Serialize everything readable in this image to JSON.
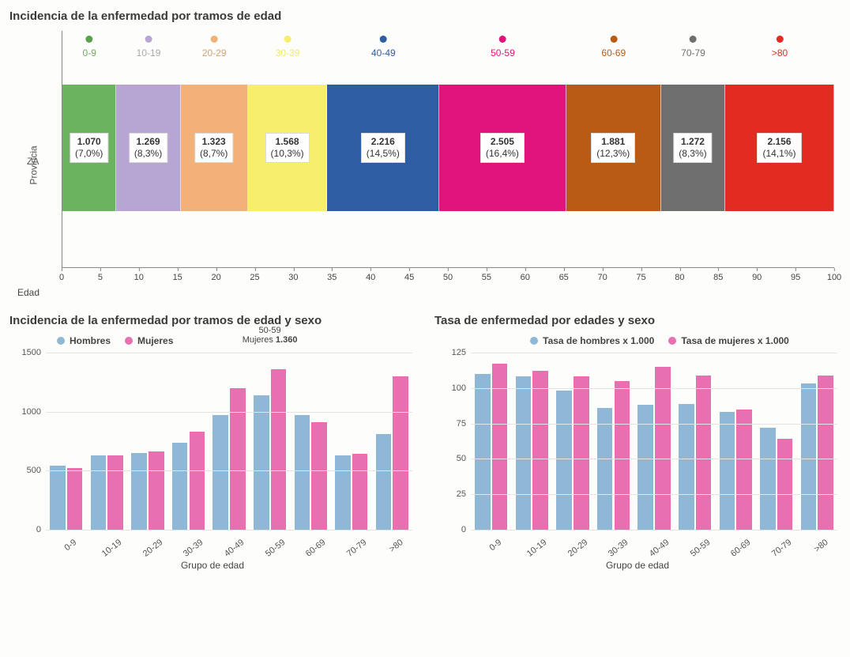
{
  "chart1": {
    "title": "Incidencia de la enfermedad por tramos de edad",
    "ylabel": "Provincia",
    "row_label": "ZA",
    "xlabel": "Edad",
    "x_min": 0,
    "x_max": 100,
    "x_tick_step": 5,
    "segments": [
      {
        "label": "0-9",
        "value": "1.070",
        "pct": "(7,0%)",
        "color": "#6bb35f",
        "legend_color": "#57a24a",
        "label_color": "#6fa862"
      },
      {
        "label": "10-19",
        "value": "1.269",
        "pct": "(8,3%)",
        "color": "#b7a6d4",
        "legend_color": "#b7a6d4",
        "label_color": "#a9a9a9"
      },
      {
        "label": "20-29",
        "value": "1.323",
        "pct": "(8,7%)",
        "color": "#f1b178",
        "legend_color": "#f1b178",
        "label_color": "#d7a070"
      },
      {
        "label": "30-39",
        "value": "1.568",
        "pct": "(10,3%)",
        "color": "#f7ee6e",
        "legend_color": "#f7ee6e",
        "label_color": "#f2e96c"
      },
      {
        "label": "40-49",
        "value": "2.216",
        "pct": "(14,5%)",
        "color": "#2f5da3",
        "legend_color": "#2f5da3",
        "label_color": "#2f5da3"
      },
      {
        "label": "50-59",
        "value": "2.505",
        "pct": "(16,4%)",
        "color": "#e0147b",
        "legend_color": "#e0147b",
        "label_color": "#e0147b"
      },
      {
        "label": "60-69",
        "value": "1.881",
        "pct": "(12,3%)",
        "color": "#b85b14",
        "legend_color": "#b85b14",
        "label_color": "#b85b14"
      },
      {
        "label": "70-79",
        "value": "1.272",
        "pct": "(8,3%)",
        "color": "#6f6f6f",
        "legend_color": "#6f6f6f",
        "label_color": "#6f6f6f"
      },
      {
        "label": ">80",
        "value": "2.156",
        "pct": "(14,1%)",
        "color": "#e22b21",
        "legend_color": "#e22b21",
        "label_color": "#e22b21"
      }
    ]
  },
  "chart2": {
    "title": "Incidencia de la enfermedad por tramos de edad y sexo",
    "xlabel": "Grupo de edad",
    "y_min": 0,
    "y_max": 1500,
    "y_tick_step": 500,
    "categories": [
      "0-9",
      "10-19",
      "20-29",
      "30-39",
      "40-49",
      "50-59",
      "60-69",
      "70-79",
      ">80"
    ],
    "series": [
      {
        "name": "Hombres",
        "color": "#8fb8d6",
        "values": [
          545,
          630,
          650,
          740,
          970,
          1140,
          970,
          630,
          810
        ]
      },
      {
        "name": "Mujeres",
        "color": "#e86fb0",
        "values": [
          520,
          630,
          665,
          830,
          1200,
          1360,
          910,
          640,
          1300
        ]
      }
    ],
    "annotation": {
      "group_index": 5,
      "line1": "50-59",
      "line2_label": "Mujeres",
      "line2_value": "1.360"
    }
  },
  "chart3": {
    "title": "Tasa de enfermedad por edades y sexo",
    "xlabel": "Grupo de edad",
    "y_min": 0,
    "y_max": 125,
    "y_tick_step": 25,
    "categories": [
      "0-9",
      "10-19",
      "20-29",
      "30-39",
      "40-49",
      "50-59",
      "60-69",
      "70-79",
      ">80"
    ],
    "series": [
      {
        "name": "Tasa de hombres x 1.000",
        "color": "#8fb8d6",
        "values": [
          110,
          108,
          98,
          86,
          88,
          89,
          83,
          72,
          103
        ]
      },
      {
        "name": "Tasa de mujeres x 1.000",
        "color": "#e86fb0",
        "values": [
          117,
          112,
          108,
          105,
          115,
          109,
          85,
          64,
          109
        ]
      }
    ]
  }
}
